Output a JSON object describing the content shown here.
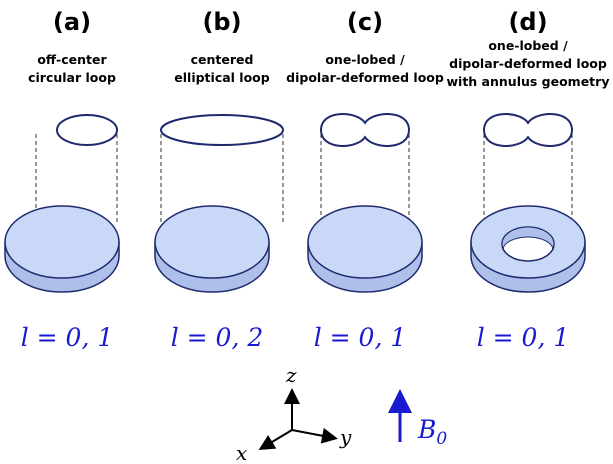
{
  "panels": [
    {
      "label": "(a)",
      "caption": [
        "off-center",
        "circular loop"
      ],
      "equation": "l = 0, 1"
    },
    {
      "label": "(b)",
      "caption": [
        "centered",
        "elliptical loop"
      ],
      "equation": "l = 0, 2"
    },
    {
      "label": "(c)",
      "caption": [
        "one-lobed /",
        "dipolar-deformed loop"
      ],
      "equation": "l = 0, 1"
    },
    {
      "label": "(d)",
      "caption": [
        "one-lobed /",
        "dipolar-deformed loop",
        "with annulus geometry"
      ],
      "equation": "l = 0, 1"
    }
  ],
  "axes": {
    "z": "z",
    "y": "y",
    "x": "x"
  },
  "field": {
    "symbol": "B",
    "subscript": "0"
  }
}
